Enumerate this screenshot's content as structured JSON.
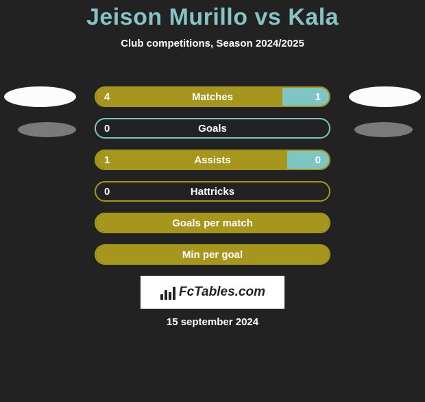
{
  "title": "Jeison Murillo vs Kala",
  "subtitle": "Club competitions, Season 2024/2025",
  "colors": {
    "background": "#222222",
    "title_color": "#86c3c4",
    "left_color": "#a7961d",
    "right_color": "#7ec5c4",
    "text_color": "#ffffff",
    "ellipse_color": "#fcfcfc",
    "ellipse_shadow": "#7a7a7a"
  },
  "layout": {
    "bar_track_width": 344,
    "bar_track_height": 30,
    "bar_border_radius": 15,
    "row_spacing": 16
  },
  "bars": [
    {
      "label": "Matches",
      "left_val": "4",
      "right_val": "1",
      "left_pct": 80,
      "right_pct": 20,
      "show_left_val": true,
      "show_right_val": true,
      "show_ellipses": true,
      "has_green_border": false
    },
    {
      "label": "Goals",
      "left_val": "0",
      "right_val": "0",
      "left_pct": 0,
      "right_pct": 0,
      "show_left_val": true,
      "show_right_val": false,
      "show_ellipses": false,
      "has_green_border": true
    },
    {
      "label": "Assists",
      "left_val": "1",
      "right_val": "0",
      "left_pct": 100,
      "right_pct": 18,
      "show_left_val": true,
      "show_right_val": true,
      "show_ellipses": false,
      "has_green_border": false
    },
    {
      "label": "Hattricks",
      "left_val": "0",
      "right_val": "0",
      "left_pct": 0,
      "right_pct": 0,
      "show_left_val": true,
      "show_right_val": false,
      "show_ellipses": false,
      "has_green_border": false
    },
    {
      "label": "Goals per match",
      "left_val": "",
      "right_val": "",
      "left_pct": 100,
      "right_pct": 0,
      "show_left_val": false,
      "show_right_val": false,
      "show_ellipses": false,
      "has_green_border": false
    },
    {
      "label": "Min per goal",
      "left_val": "",
      "right_val": "",
      "left_pct": 100,
      "right_pct": 0,
      "show_left_val": false,
      "show_right_val": false,
      "show_ellipses": false,
      "has_green_border": false
    }
  ],
  "logo_text": "FcTables.com",
  "date": "15 september 2024",
  "ellipse_shadow_rows": [
    0
  ]
}
